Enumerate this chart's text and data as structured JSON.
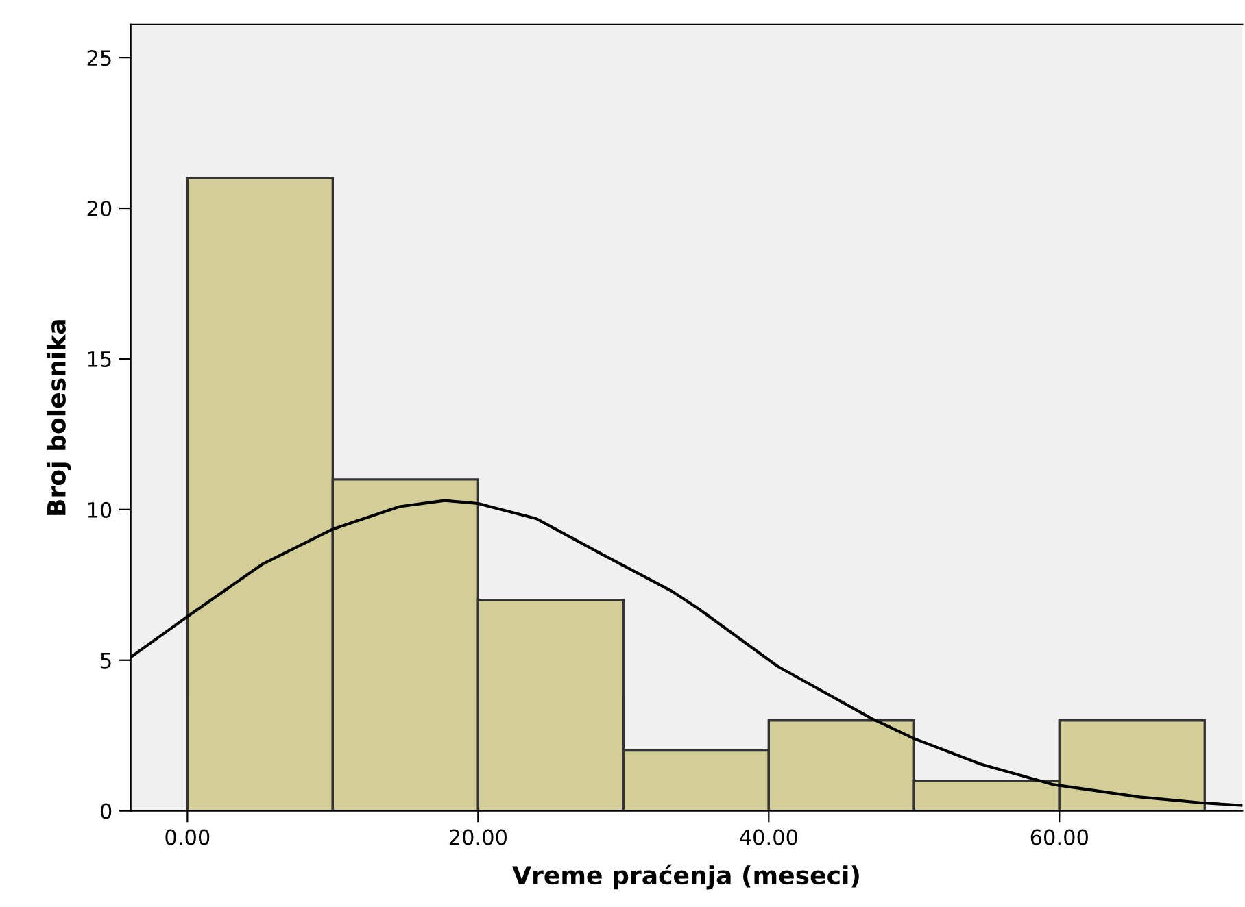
{
  "chart_data": {
    "type": "histogram",
    "xlabel": "Vreme praćenja (meseci)",
    "ylabel": "Broj bolesnika",
    "bins": [
      0,
      10,
      20,
      30,
      40,
      50,
      60,
      70
    ],
    "values": [
      21,
      11,
      7,
      2,
      3,
      1,
      3
    ],
    "color": "#d3ce97",
    "series": [
      {
        "type": "line",
        "color": "#000000",
        "x": [
          -3.9,
          0,
          5.2,
          10,
          14.6,
          17.7,
          20,
          24,
          28.6,
          33.3,
          35.2,
          40.6,
          47.1,
          50,
          54.6,
          59.6,
          65.5,
          69.7,
          72.6
        ],
        "values": [
          5.1,
          6.45,
          8.2,
          9.35,
          10.1,
          10.3,
          10.2,
          9.7,
          8.5,
          7.3,
          6.7,
          4.8,
          3.06,
          2.4,
          1.55,
          0.87,
          0.46,
          0.27,
          0.18
        ]
      }
    ],
    "xlim": [
      -3.9,
      72.6
    ],
    "ylim": [
      0,
      26.1
    ],
    "xticks": [
      {
        "value": 0,
        "label": "0.00"
      },
      {
        "value": 20,
        "label": "20.00"
      },
      {
        "value": 40,
        "label": "40.00"
      },
      {
        "value": 60,
        "label": "60.00"
      }
    ],
    "yticks": [
      0,
      5,
      10,
      15,
      20,
      25
    ],
    "grid": false,
    "legend": false
  }
}
